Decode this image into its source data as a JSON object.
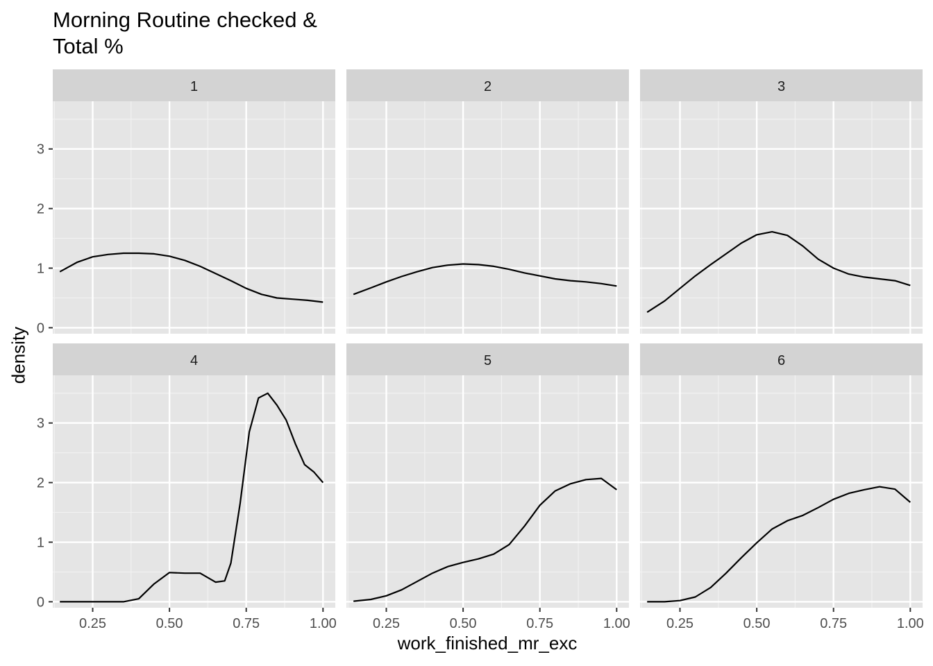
{
  "title_line1": "Morning Routine checked &",
  "title_line2": "Total %",
  "chart_data": {
    "type": "line",
    "subtype": "density",
    "xlabel": "work_finished_mr_exc",
    "ylabel": "density",
    "xlim": [
      0.12,
      1.04
    ],
    "ylim": [
      -0.1,
      3.8
    ],
    "x_ticks": [
      0.25,
      0.5,
      0.75,
      1.0
    ],
    "x_tick_labels": [
      "0.25",
      "0.50",
      "0.75",
      "1.00"
    ],
    "y_ticks": [
      0,
      1,
      2,
      3
    ],
    "y_tick_labels": [
      "0",
      "1",
      "2",
      "3"
    ],
    "grid": true,
    "line_color": "#000000",
    "panel_bg": "#e5e5e5",
    "strip_bg": "#d3d3d3",
    "facets": [
      {
        "label": "1",
        "x": [
          0.143,
          0.2,
          0.25,
          0.3,
          0.35,
          0.4,
          0.45,
          0.5,
          0.55,
          0.6,
          0.65,
          0.7,
          0.75,
          0.8,
          0.85,
          0.9,
          0.95,
          1.0
        ],
        "y": [
          0.94,
          1.1,
          1.19,
          1.23,
          1.25,
          1.25,
          1.24,
          1.2,
          1.13,
          1.03,
          0.91,
          0.79,
          0.66,
          0.56,
          0.5,
          0.48,
          0.46,
          0.43
        ]
      },
      {
        "label": "2",
        "x": [
          0.143,
          0.2,
          0.25,
          0.3,
          0.35,
          0.4,
          0.45,
          0.5,
          0.55,
          0.6,
          0.65,
          0.7,
          0.75,
          0.8,
          0.85,
          0.9,
          0.95,
          1.0
        ],
        "y": [
          0.56,
          0.67,
          0.77,
          0.86,
          0.94,
          1.01,
          1.05,
          1.07,
          1.06,
          1.03,
          0.98,
          0.92,
          0.87,
          0.82,
          0.79,
          0.77,
          0.74,
          0.7
        ]
      },
      {
        "label": "3",
        "x": [
          0.143,
          0.2,
          0.25,
          0.3,
          0.35,
          0.4,
          0.45,
          0.5,
          0.55,
          0.6,
          0.65,
          0.7,
          0.75,
          0.8,
          0.85,
          0.9,
          0.95,
          1.0
        ],
        "y": [
          0.26,
          0.45,
          0.66,
          0.87,
          1.06,
          1.24,
          1.42,
          1.56,
          1.61,
          1.55,
          1.37,
          1.15,
          1.0,
          0.9,
          0.85,
          0.82,
          0.79,
          0.71
        ]
      },
      {
        "label": "4",
        "x": [
          0.143,
          0.2,
          0.25,
          0.3,
          0.35,
          0.4,
          0.45,
          0.5,
          0.55,
          0.6,
          0.65,
          0.68,
          0.7,
          0.73,
          0.76,
          0.79,
          0.82,
          0.85,
          0.88,
          0.91,
          0.94,
          0.97,
          1.0
        ],
        "y": [
          0.0,
          0.0,
          0.0,
          0.0,
          0.0,
          0.05,
          0.3,
          0.49,
          0.48,
          0.48,
          0.33,
          0.35,
          0.65,
          1.65,
          2.85,
          3.42,
          3.5,
          3.3,
          3.05,
          2.65,
          2.3,
          2.18,
          2.0
        ]
      },
      {
        "label": "5",
        "x": [
          0.143,
          0.2,
          0.25,
          0.3,
          0.35,
          0.4,
          0.45,
          0.5,
          0.55,
          0.6,
          0.65,
          0.7,
          0.75,
          0.8,
          0.85,
          0.9,
          0.95,
          1.0
        ],
        "y": [
          0.01,
          0.04,
          0.1,
          0.2,
          0.34,
          0.48,
          0.59,
          0.66,
          0.72,
          0.8,
          0.96,
          1.27,
          1.62,
          1.86,
          1.98,
          2.05,
          2.07,
          1.88
        ]
      },
      {
        "label": "6",
        "x": [
          0.143,
          0.2,
          0.25,
          0.3,
          0.35,
          0.4,
          0.45,
          0.5,
          0.55,
          0.6,
          0.65,
          0.7,
          0.75,
          0.8,
          0.85,
          0.9,
          0.95,
          1.0
        ],
        "y": [
          0.0,
          0.0,
          0.02,
          0.08,
          0.24,
          0.48,
          0.74,
          0.99,
          1.22,
          1.36,
          1.45,
          1.58,
          1.72,
          1.82,
          1.88,
          1.93,
          1.89,
          1.67
        ]
      }
    ]
  }
}
